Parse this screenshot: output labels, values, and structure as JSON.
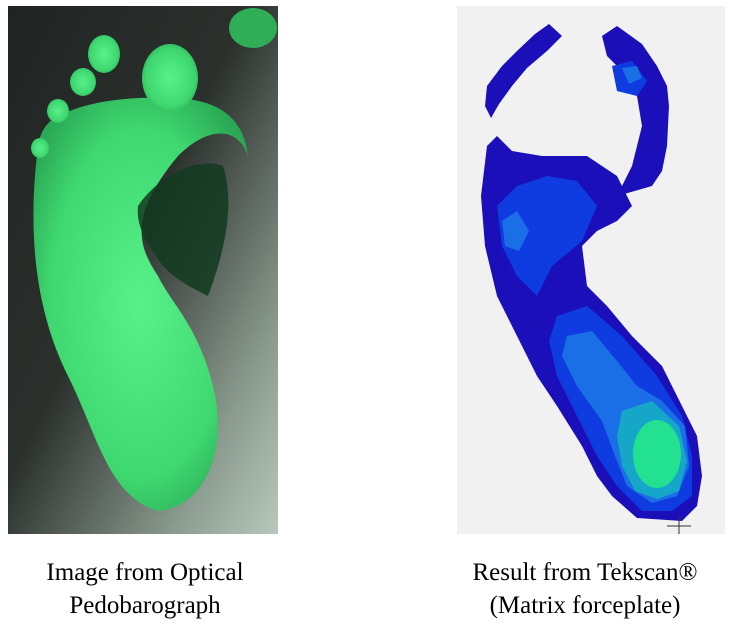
{
  "figures": [
    {
      "caption_line1": "Image from Optical",
      "caption_line2": "Pedobarograph",
      "image": "green-foot-footprint-photo",
      "colors": {
        "background": "#1c1e1d",
        "foot": "#43e879",
        "shadow": "#0c2a16"
      }
    },
    {
      "caption_line1": "Result from Tekscan®",
      "caption_line2": "(Matrix forceplate)",
      "image": "pressure-map-foot",
      "colors": {
        "background": "#f1f1f1",
        "low": "#1a0fb8",
        "mid": "#0f3ce0",
        "midhigh": "#1b6fe6",
        "high": "#16a6c8",
        "peak": "#22e190"
      }
    }
  ]
}
